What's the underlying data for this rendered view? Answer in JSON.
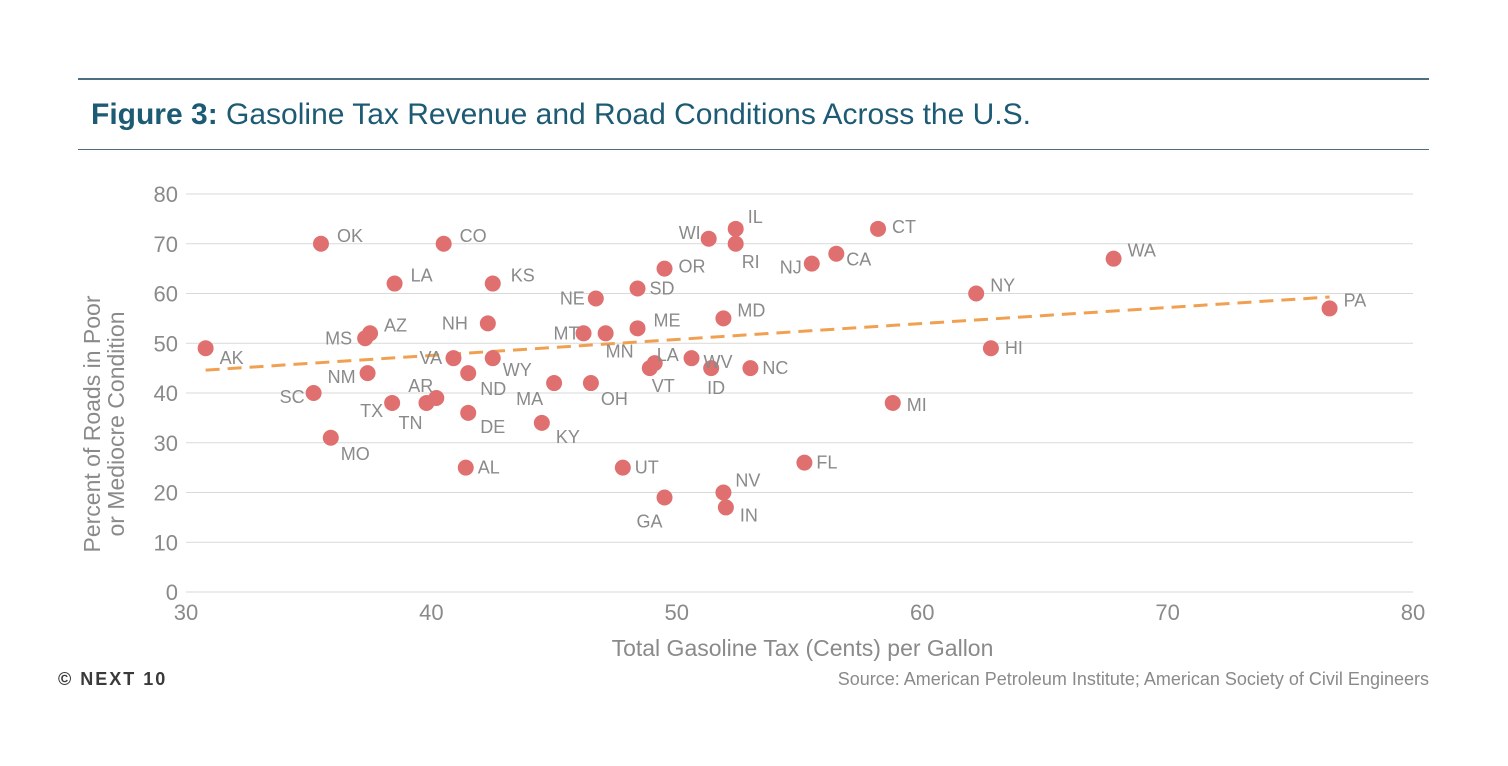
{
  "header": {
    "figure_label": "Figure 3:",
    "title": "Gasoline Tax Revenue and Road Conditions Across the U.S."
  },
  "footer": {
    "credit": "© NEXT 10",
    "source": "Source: American Petroleum Institute; American Society of Civil Engineers"
  },
  "colors": {
    "accent": "#1d5a73",
    "point": "#e07070",
    "trend": "#f0a050",
    "grid": "#d9d9d9"
  },
  "chart_data": {
    "type": "scatter",
    "xlabel": "Total Gasoline Tax (Cents) per Gallon",
    "ylabel": [
      "Percent of Roads in Poor",
      "or Mediocre Condition"
    ],
    "xlim": [
      30,
      80
    ],
    "ylim": [
      0,
      80
    ],
    "xticks": [
      30,
      40,
      50,
      60,
      70,
      80
    ],
    "yticks": [
      0,
      10,
      20,
      30,
      40,
      50,
      60,
      70,
      80
    ],
    "grid": "horizontal",
    "points": [
      {
        "label": "AK",
        "x": 30.8,
        "y": 49
      },
      {
        "label": "OK",
        "x": 35.5,
        "y": 70
      },
      {
        "label": "CO",
        "x": 40.5,
        "y": 70
      },
      {
        "label": "LA",
        "x": 38.5,
        "y": 62
      },
      {
        "label": "KS",
        "x": 42.5,
        "y": 62
      },
      {
        "label": "MS",
        "x": 37.3,
        "y": 51
      },
      {
        "label": "AZ",
        "x": 37.5,
        "y": 52
      },
      {
        "label": "NH",
        "x": 42.3,
        "y": 54
      },
      {
        "label": "NM",
        "x": 37.4,
        "y": 44
      },
      {
        "label": "SC",
        "x": 35.2,
        "y": 40
      },
      {
        "label": "TX",
        "x": 38.4,
        "y": 38
      },
      {
        "label": "AR",
        "x": 40.2,
        "y": 39
      },
      {
        "label": "TN",
        "x": 39.8,
        "y": 38
      },
      {
        "label": "MO",
        "x": 35.9,
        "y": 31
      },
      {
        "label": "VA",
        "x": 40.9,
        "y": 47
      },
      {
        "label": "ND",
        "x": 41.5,
        "y": 44
      },
      {
        "label": "WY",
        "x": 42.5,
        "y": 47
      },
      {
        "label": "DE",
        "x": 41.5,
        "y": 36
      },
      {
        "label": "AL",
        "x": 41.4,
        "y": 25
      },
      {
        "label": "MA",
        "x": 45.0,
        "y": 42
      },
      {
        "label": "KY",
        "x": 44.5,
        "y": 34
      },
      {
        "label": "OH",
        "x": 46.5,
        "y": 42
      },
      {
        "label": "NE",
        "x": 46.7,
        "y": 59
      },
      {
        "label": "MT",
        "x": 46.2,
        "y": 52
      },
      {
        "label": "MN",
        "x": 47.1,
        "y": 52
      },
      {
        "label": "ME",
        "x": 48.4,
        "y": 53
      },
      {
        "label": "SD",
        "x": 48.4,
        "y": 61
      },
      {
        "label": "OR",
        "x": 49.5,
        "y": 65
      },
      {
        "label": "LA",
        "x": 49.1,
        "y": 46
      },
      {
        "label": "VT",
        "x": 48.9,
        "y": 45
      },
      {
        "label": "UT",
        "x": 47.8,
        "y": 25
      },
      {
        "label": "GA",
        "x": 49.5,
        "y": 19
      },
      {
        "label": "WV",
        "x": 50.6,
        "y": 47
      },
      {
        "label": "ID",
        "x": 51.4,
        "y": 45
      },
      {
        "label": "WI",
        "x": 51.3,
        "y": 71
      },
      {
        "label": "IL",
        "x": 52.4,
        "y": 73
      },
      {
        "label": "RI",
        "x": 52.4,
        "y": 70
      },
      {
        "label": "MD",
        "x": 51.9,
        "y": 55
      },
      {
        "label": "NC",
        "x": 53.0,
        "y": 45
      },
      {
        "label": "NV",
        "x": 51.9,
        "y": 20
      },
      {
        "label": "IN",
        "x": 52.0,
        "y": 17
      },
      {
        "label": "NJ",
        "x": 55.5,
        "y": 66
      },
      {
        "label": "CA",
        "x": 56.5,
        "y": 68
      },
      {
        "label": "CT",
        "x": 58.2,
        "y": 73
      },
      {
        "label": "FL",
        "x": 55.2,
        "y": 26
      },
      {
        "label": "MI",
        "x": 58.8,
        "y": 38
      },
      {
        "label": "NY",
        "x": 62.2,
        "y": 60
      },
      {
        "label": "HI",
        "x": 62.8,
        "y": 49
      },
      {
        "label": "WA",
        "x": 67.8,
        "y": 67
      },
      {
        "label": "PA",
        "x": 76.6,
        "y": 57
      }
    ],
    "trendline": {
      "style": "dashed",
      "x": [
        30.8,
        76.6
      ],
      "y": [
        44.6,
        59.3
      ]
    }
  }
}
